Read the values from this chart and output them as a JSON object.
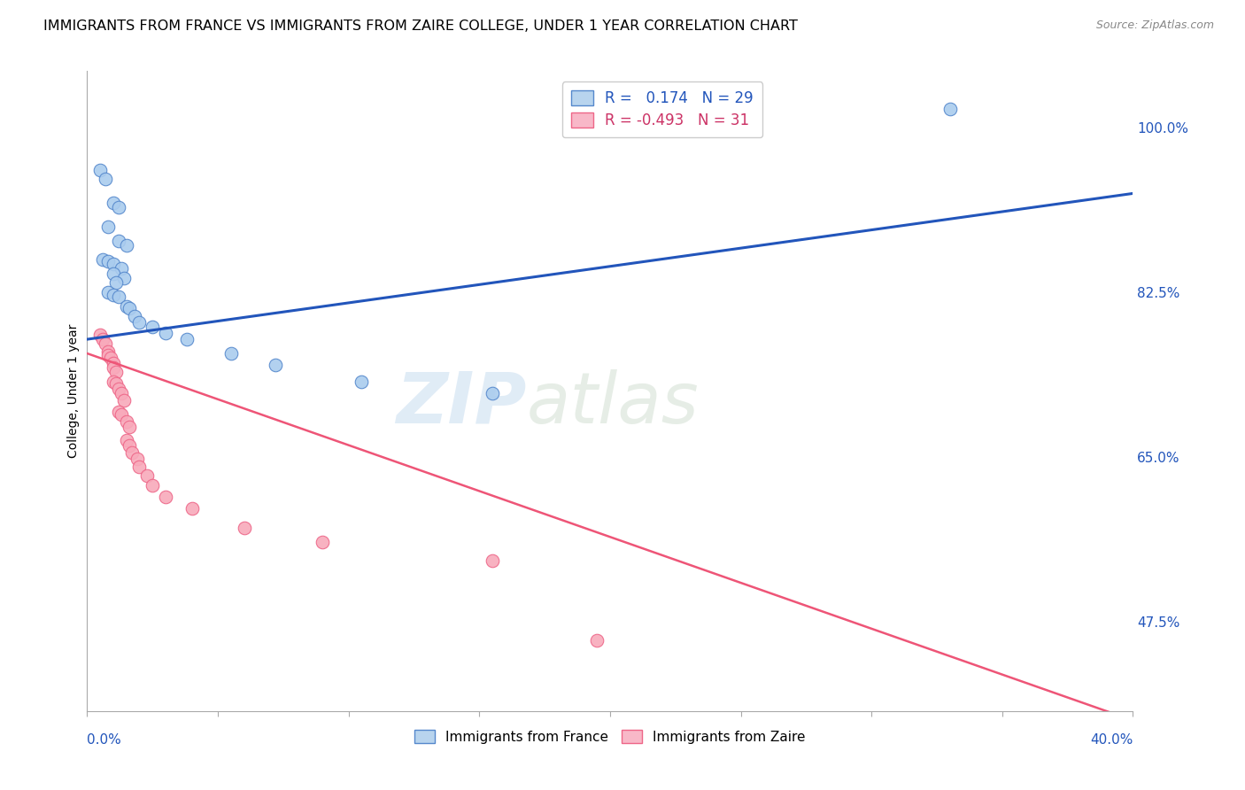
{
  "title": "IMMIGRANTS FROM FRANCE VS IMMIGRANTS FROM ZAIRE COLLEGE, UNDER 1 YEAR CORRELATION CHART",
  "source": "Source: ZipAtlas.com",
  "ylabel": "College, Under 1 year",
  "ylabel_right_ticks": [
    "100.0%",
    "82.5%",
    "65.0%",
    "47.5%"
  ],
  "ylabel_right_vals": [
    1.0,
    0.825,
    0.65,
    0.475
  ],
  "legend1_label": "R =   0.174   N = 29",
  "legend2_label": "R = -0.493   N = 31",
  "legend1_color": "#b8d4ee",
  "legend2_color": "#f8b8c8",
  "watermark_zip": "ZIP",
  "watermark_atlas": "atlas",
  "france_color": "#aaccee",
  "zaire_color": "#f8aabb",
  "france_edge_color": "#5588cc",
  "zaire_edge_color": "#ee6688",
  "france_line_color": "#2255bb",
  "zaire_line_color": "#ee5577",
  "france_scatter": [
    [
      0.005,
      0.955
    ],
    [
      0.007,
      0.945
    ],
    [
      0.01,
      0.92
    ],
    [
      0.012,
      0.915
    ],
    [
      0.008,
      0.895
    ],
    [
      0.012,
      0.88
    ],
    [
      0.015,
      0.875
    ],
    [
      0.006,
      0.86
    ],
    [
      0.008,
      0.858
    ],
    [
      0.01,
      0.855
    ],
    [
      0.013,
      0.85
    ],
    [
      0.01,
      0.845
    ],
    [
      0.014,
      0.84
    ],
    [
      0.011,
      0.835
    ],
    [
      0.008,
      0.825
    ],
    [
      0.01,
      0.822
    ],
    [
      0.012,
      0.82
    ],
    [
      0.015,
      0.81
    ],
    [
      0.016,
      0.808
    ],
    [
      0.018,
      0.8
    ],
    [
      0.02,
      0.793
    ],
    [
      0.025,
      0.788
    ],
    [
      0.03,
      0.782
    ],
    [
      0.038,
      0.775
    ],
    [
      0.055,
      0.76
    ],
    [
      0.072,
      0.748
    ],
    [
      0.105,
      0.73
    ],
    [
      0.155,
      0.718
    ],
    [
      0.33,
      1.02
    ]
  ],
  "zaire_scatter": [
    [
      0.005,
      0.78
    ],
    [
      0.006,
      0.775
    ],
    [
      0.007,
      0.77
    ],
    [
      0.008,
      0.762
    ],
    [
      0.008,
      0.758
    ],
    [
      0.009,
      0.755
    ],
    [
      0.01,
      0.75
    ],
    [
      0.01,
      0.745
    ],
    [
      0.011,
      0.74
    ],
    [
      0.01,
      0.73
    ],
    [
      0.011,
      0.728
    ],
    [
      0.012,
      0.722
    ],
    [
      0.013,
      0.718
    ],
    [
      0.014,
      0.71
    ],
    [
      0.012,
      0.698
    ],
    [
      0.013,
      0.695
    ],
    [
      0.015,
      0.688
    ],
    [
      0.016,
      0.682
    ],
    [
      0.015,
      0.668
    ],
    [
      0.016,
      0.662
    ],
    [
      0.017,
      0.655
    ],
    [
      0.019,
      0.648
    ],
    [
      0.02,
      0.64
    ],
    [
      0.023,
      0.63
    ],
    [
      0.025,
      0.62
    ],
    [
      0.03,
      0.608
    ],
    [
      0.04,
      0.595
    ],
    [
      0.06,
      0.575
    ],
    [
      0.09,
      0.56
    ],
    [
      0.155,
      0.54
    ],
    [
      0.195,
      0.455
    ]
  ],
  "france_R": 0.174,
  "france_N": 29,
  "zaire_R": -0.493,
  "zaire_N": 31,
  "xlim": [
    0.0,
    0.4
  ],
  "ylim": [
    0.38,
    1.06
  ],
  "france_trend_x": [
    0.0,
    0.4
  ],
  "france_trend_y": [
    0.775,
    0.93
  ],
  "zaire_trend_x": [
    0.0,
    0.4
  ],
  "zaire_trend_y": [
    0.76,
    0.37
  ]
}
